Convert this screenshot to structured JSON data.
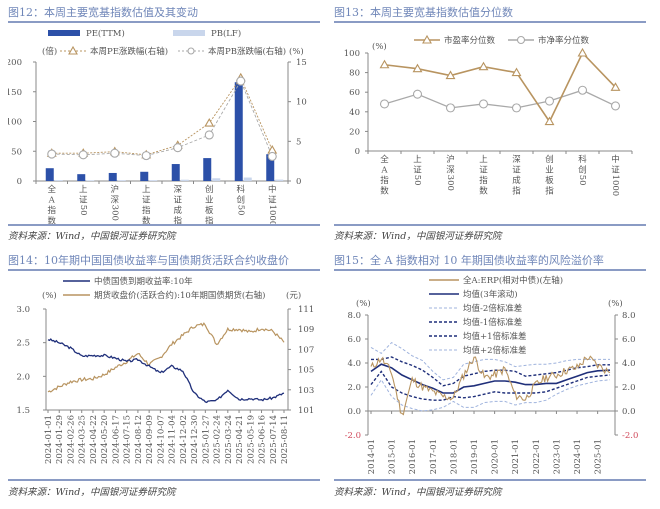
{
  "source_label": "资料来源：Wind，中国银河证券研究院",
  "colors": {
    "navy": "#2c50a8",
    "lightbar": "#c9d6ec",
    "gold": "#b89460",
    "grey": "#a9a9a9",
    "darknavy": "#1f2f7a",
    "red": "#d0485a",
    "title": "#6f86b8"
  },
  "chart_data": [
    {
      "id": "fig12",
      "title": "图12：本周主要宽基指数估值及其变动",
      "type": "bar",
      "categories": [
        "全A指数",
        "上证50",
        "沪深300",
        "上证指数",
        "深证成指",
        "创业板指",
        "科创50",
        "中证1000"
      ],
      "category_labels": [
        [
          "全",
          "A",
          "指",
          "数"
        ],
        [
          "上",
          "证",
          "50"
        ],
        [
          "沪",
          "深",
          "300"
        ],
        [
          "上",
          "证",
          "指",
          "数"
        ],
        [
          "深",
          "证",
          "成",
          "指"
        ],
        [
          "创",
          "业",
          "板",
          "指"
        ],
        [
          "科",
          "创",
          "50"
        ],
        [
          "中",
          "证",
          "1000"
        ]
      ],
      "yunit_left": "(倍)",
      "yunit_right": "(%)",
      "ylim_left": [
        0,
        200
      ],
      "yticks_left": [
        "0",
        "50",
        "100",
        "150",
        "200"
      ],
      "ylim_right": [
        0,
        15
      ],
      "yticks_right": [
        "0",
        "5",
        "10",
        "15"
      ],
      "series": [
        {
          "name": "PE(TTM)",
          "kind": "bar",
          "axis": "left",
          "values": [
            21.5,
            11.5,
            13.5,
            15.5,
            28.5,
            38.5,
            166,
            45
          ]
        },
        {
          "name": "PB(LF)",
          "kind": "bar",
          "axis": "left",
          "values": [
            1.5,
            1.2,
            1.4,
            1.4,
            2.2,
            4.6,
            5.8,
            2.4
          ]
        },
        {
          "name": "本周PE涨跌幅(右轴)",
          "kind": "line",
          "axis": "right",
          "values": [
            3.5,
            3.5,
            3.7,
            3.3,
            4.5,
            7.3,
            13.0,
            3.9
          ]
        },
        {
          "name": "本周PB涨跌幅(右轴)",
          "kind": "line",
          "axis": "right",
          "values": [
            3.4,
            3.3,
            3.5,
            3.2,
            4.2,
            5.8,
            12.6,
            3.1
          ]
        }
      ]
    },
    {
      "id": "fig13",
      "title": "图13：本周主要宽基指数估值分位数",
      "type": "line",
      "categories": [
        "全A指数",
        "上证50",
        "沪深300",
        "上证指数",
        "深证成指",
        "创业板指",
        "科创50",
        "中证1000"
      ],
      "category_labels": [
        [
          "全",
          "A",
          "指",
          "数"
        ],
        [
          "上",
          "证",
          "50"
        ],
        [
          "沪",
          "深",
          "300"
        ],
        [
          "上",
          "证",
          "指",
          "数"
        ],
        [
          "深",
          "证",
          "成",
          "指"
        ],
        [
          "创",
          "业",
          "板",
          "指"
        ],
        [
          "科",
          "创",
          "50"
        ],
        [
          "中",
          "证",
          "1000"
        ]
      ],
      "yunit": "(%)",
      "ylim": [
        0,
        100
      ],
      "yticks": [
        "0",
        "20",
        "40",
        "60",
        "80",
        "100"
      ],
      "series": [
        {
          "name": "市盈率分位数",
          "values": [
            88,
            84,
            77,
            86,
            80,
            30,
            100,
            65
          ]
        },
        {
          "name": "市净率分位数",
          "values": [
            48,
            58,
            44,
            48,
            44,
            51,
            62,
            46
          ]
        }
      ]
    },
    {
      "id": "fig14",
      "title": "图14：10年期中国国债收益率与国债期货活跃合约收盘价",
      "type": "line",
      "yunit_left": "(%)",
      "yunit_right": "(元)",
      "ylim_left": [
        1.5,
        3.0
      ],
      "yticks_left": [
        "1.5",
        "2.0",
        "2.5",
        "3.0"
      ],
      "ylim_right": [
        101,
        111
      ],
      "yticks_right": [
        "101",
        "103",
        "105",
        "107",
        "109",
        "111"
      ],
      "xticks": [
        "2024-01-01",
        "2024-01-29",
        "2024-02-26",
        "2024-03-25",
        "2024-04-22",
        "2024-05-20",
        "2024-06-17",
        "2024-07-15",
        "2024-08-12",
        "2024-09-09",
        "2024-10-07",
        "2024-11-04",
        "2024-12-02",
        "2024-12-30",
        "2025-01-27",
        "2025-02-24",
        "2025-03-24",
        "2025-04-21",
        "2025-05-19",
        "2025-06-16",
        "2025-07-14",
        "2025-08-11"
      ],
      "series": [
        {
          "name": "中债国债到期收益率:10年",
          "axis": "left",
          "values": [
            2.55,
            2.5,
            2.42,
            2.3,
            2.31,
            2.31,
            2.27,
            2.22,
            2.25,
            2.15,
            2.05,
            2.15,
            2.08,
            1.75,
            1.62,
            1.64,
            1.8,
            1.66,
            1.67,
            1.65,
            1.68,
            1.75
          ]
        },
        {
          "name": "期货收盘价(活跃合约):10年期国债期货(右轴)",
          "axis": "right",
          "values": [
            102.8,
            103.3,
            103.8,
            104.0,
            104.1,
            104.5,
            105.2,
            105.8,
            106.6,
            105.5,
            106.2,
            107.5,
            108.4,
            109.3,
            109.5,
            107.5,
            109.0,
            109.0,
            108.7,
            109.1,
            108.8,
            107.7
          ]
        }
      ]
    },
    {
      "id": "fig15",
      "title": "图15：全 A 指数相对 10 年期国债收益率的风险溢价率",
      "type": "line",
      "yunit_left": "(%)",
      "yunit_right": "(%)",
      "ylim": [
        -2.0,
        8.0
      ],
      "yticks": [
        "-2.0",
        "0.0",
        "2.0",
        "4.0",
        "6.0",
        "8.0"
      ],
      "xticks": [
        "2014-01",
        "2015-01",
        "2016-01",
        "2017-01",
        "2018-01",
        "2019-01",
        "2020-01",
        "2021-01",
        "2022-01",
        "2023-01",
        "2024-01",
        "2025-01"
      ],
      "x": [
        2014.0,
        2014.5,
        2015.0,
        2015.5,
        2016.0,
        2016.5,
        2017.0,
        2017.5,
        2018.0,
        2018.5,
        2019.0,
        2019.5,
        2020.0,
        2020.5,
        2021.0,
        2021.5,
        2022.0,
        2022.5,
        2023.0,
        2023.5,
        2024.0,
        2024.5,
        2025.0,
        2025.6
      ],
      "series": [
        {
          "name": "全A:ERP(相对中债)(左轴)",
          "style": "gold",
          "values": [
            3.6,
            4.4,
            3.2,
            -0.4,
            2.6,
            2.0,
            1.6,
            1.2,
            1.1,
            3.0,
            4.5,
            2.8,
            3.0,
            3.5,
            1.3,
            1.0,
            2.2,
            2.8,
            3.0,
            3.4,
            3.6,
            4.5,
            3.8,
            3.2
          ]
        },
        {
          "name": "均值(3年滚动)",
          "style": "solid-navy",
          "values": [
            3.3,
            3.9,
            3.6,
            3.0,
            2.6,
            2.2,
            1.9,
            1.5,
            1.5,
            2.0,
            2.1,
            2.3,
            2.5,
            2.5,
            2.4,
            2.2,
            2.2,
            2.3,
            2.3,
            2.6,
            2.9,
            3.2,
            3.35,
            3.4
          ]
        },
        {
          "name": "均值-2倍标准差",
          "style": "light-dash",
          "values": [
            1.3,
            2.6,
            1.2,
            0.5,
            0.2,
            0.0,
            0.1,
            0.3,
            0.8,
            0.3,
            0.3,
            0.7,
            0.8,
            0.8,
            0.5,
            0.7,
            0.7,
            0.9,
            1.4,
            1.8,
            2.1,
            2.3,
            2.5,
            2.6
          ]
        },
        {
          "name": "均值-1倍标准差",
          "style": "dark-dash",
          "values": [
            2.2,
            3.3,
            2.0,
            1.5,
            1.2,
            1.0,
            0.9,
            0.9,
            1.2,
            1.1,
            1.2,
            1.4,
            1.6,
            1.5,
            1.5,
            1.5,
            1.5,
            1.6,
            1.9,
            2.2,
            2.5,
            2.8,
            2.9,
            3.0
          ]
        },
        {
          "name": "均值+1倍标准差",
          "style": "dark-dash",
          "values": [
            4.3,
            4.3,
            4.5,
            4.1,
            3.8,
            3.4,
            2.8,
            2.1,
            2.3,
            2.9,
            3.1,
            3.3,
            3.4,
            3.4,
            3.3,
            2.9,
            3.0,
            3.1,
            3.2,
            3.4,
            3.6,
            3.7,
            3.85,
            3.85
          ]
        },
        {
          "name": "均值+2倍标准差",
          "style": "light-dash",
          "values": [
            5.3,
            4.8,
            5.7,
            5.2,
            4.6,
            4.2,
            3.3,
            2.6,
            2.8,
            3.9,
            4.1,
            4.3,
            4.3,
            4.1,
            3.7,
            3.8,
            3.9,
            3.9,
            4.0,
            4.2,
            4.3,
            4.3,
            4.3,
            4.3
          ]
        }
      ]
    }
  ]
}
